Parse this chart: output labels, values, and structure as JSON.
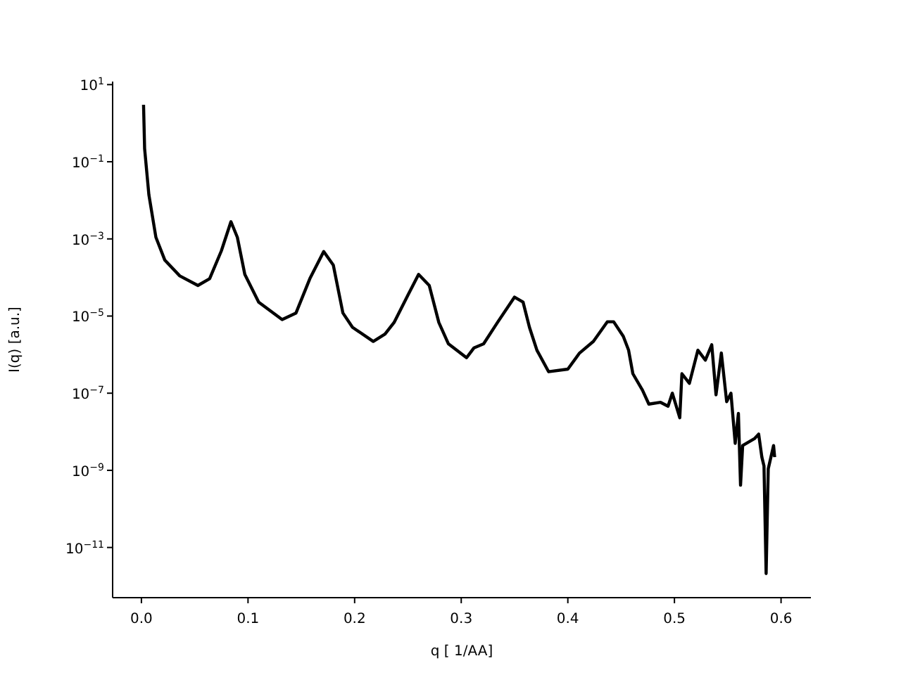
{
  "chart_data": {
    "type": "line",
    "xlabel": "q [ 1/AA]",
    "ylabel": "I(q) [a.u.]",
    "log": true,
    "xlim": [
      -0.027,
      0.628
    ],
    "ylim": [
      5e-13,
      12
    ],
    "xticks": [
      {
        "value": 0,
        "label": "0.0"
      },
      0.1,
      0.2,
      0.3,
      0.4,
      0.5,
      0.6
    ],
    "yticks": [
      {
        "value": 10,
        "label": "10$^{1}$"
      },
      {
        "value": 0.1,
        "label": "10$^{−1}$"
      },
      {
        "value": 0.001,
        "label": "10$^{−3}$"
      },
      {
        "value": 1e-05,
        "label": "10$^{−5}$"
      },
      {
        "value": 1e-07,
        "label": "10$^{−7}$"
      },
      {
        "value": 1e-09,
        "label": "10$^{−9}$"
      },
      {
        "value": 1e-11,
        "label": "10$^{−11}$"
      }
    ],
    "x": [
      0.002,
      0.003,
      0.007,
      0.0136,
      0.022,
      0.036,
      0.053,
      0.064,
      0.075,
      0.084,
      0.09,
      0.097,
      0.11,
      0.132,
      0.145,
      0.158,
      0.171,
      0.18,
      0.189,
      0.198,
      0.2175,
      0.2285,
      0.237,
      0.25,
      0.26,
      0.27,
      0.279,
      0.288,
      0.305,
      0.312,
      0.321,
      0.334,
      0.35,
      0.358,
      0.364,
      0.371,
      0.382,
      0.4,
      0.411,
      0.424,
      0.437,
      0.443,
      0.452,
      0.457,
      0.461,
      0.47,
      0.476,
      0.487,
      0.494,
      0.498,
      0.505,
      0.507,
      0.514,
      0.522,
      0.529,
      0.535,
      0.539,
      0.544,
      0.549,
      0.553,
      0.557,
      0.56,
      0.562,
      0.564,
      0.575,
      0.579,
      0.582,
      0.584,
      0.586,
      0.588,
      0.593,
      0.594
    ],
    "series": [
      {
        "color": "#000000",
        "values": [
          3.0,
          0.22,
          0.014,
          0.0011,
          0.00028,
          0.00011,
          6.2e-05,
          9.3e-05,
          0.00049,
          0.0028,
          0.0011,
          0.00012,
          2.3e-05,
          8.1e-06,
          1.2e-05,
          9.3e-05,
          0.00047,
          0.00021,
          1.2e-05,
          5.1e-06,
          2.2e-06,
          3.4e-06,
          6.8e-06,
          3.5e-05,
          0.00012,
          6.2e-05,
          6.8e-06,
          1.9e-06,
          8.3e-07,
          1.5e-06,
          1.9e-06,
          6.8e-06,
          3.1e-05,
          2.3e-05,
          5.1e-06,
          1.3e-06,
          3.6e-07,
          4.2e-07,
          1.1e-06,
          2.2e-06,
          7.1e-06,
          7.1e-06,
          3e-06,
          1.3e-06,
          3.2e-07,
          1.2e-07,
          5.2e-08,
          5.8e-08,
          4.6e-08,
          1e-07,
          2.3e-08,
          3.2e-07,
          1.8e-07,
          1.3e-06,
          7.2e-07,
          1.8e-06,
          9.1e-08,
          1.1e-06,
          6e-08,
          1e-07,
          5e-09,
          3e-08,
          4.1e-10,
          4.4e-09,
          6.6e-09,
          8.7e-09,
          2.2e-09,
          1.3e-09,
          2.1e-12,
          1.1e-09,
          4.4e-09,
          2.2e-09
        ]
      }
    ]
  }
}
